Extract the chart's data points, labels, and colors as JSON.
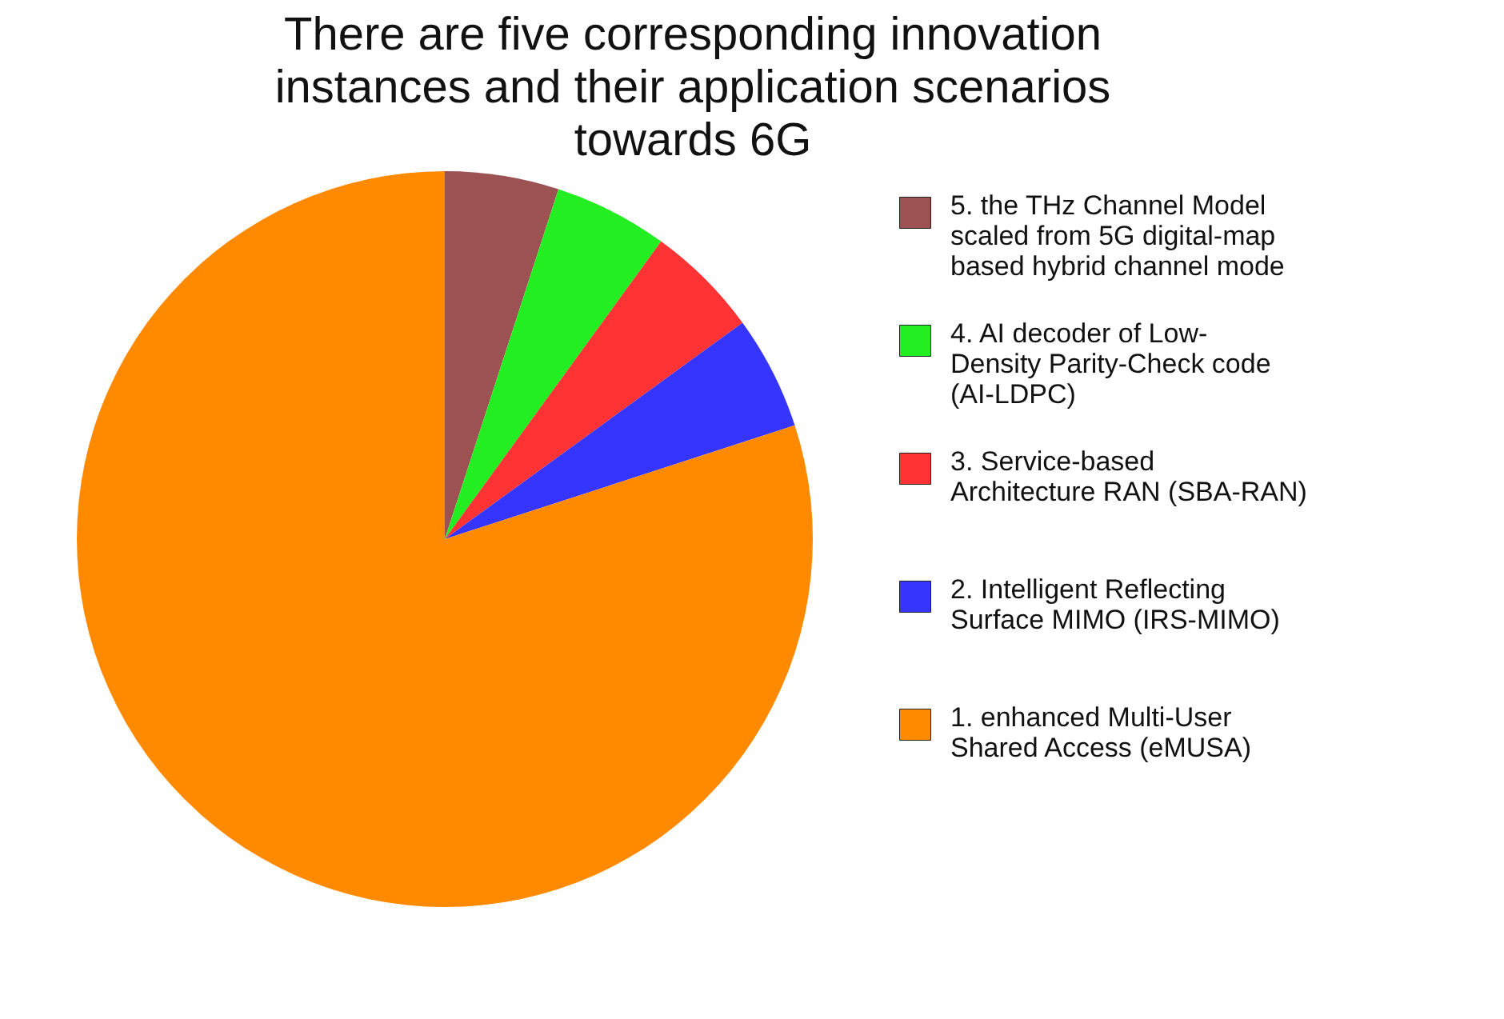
{
  "chart_data": {
    "type": "pie",
    "title": "There are five corresponding innovation instances and their application scenarios towards 6G",
    "categories": [
      "5. the THz Channel Model scaled from  5G digital-map based hybrid channel mode",
      "4. AI decoder of Low-Density Parity-Check code (AI-LDPC)",
      "3. Service-based Architecture RAN (SBA-RAN)",
      "2. Intelligent Reflecting Surface MIMO (IRS-MIMO)",
      "1. enhanced Multi-User Shared Access (eMUSA)"
    ],
    "values": [
      5,
      5,
      5,
      5,
      80
    ],
    "colors": [
      "#9c5252",
      "#22ee22",
      "#ff3333",
      "#3535ff",
      "#ff8a00"
    ],
    "legend": "right"
  }
}
